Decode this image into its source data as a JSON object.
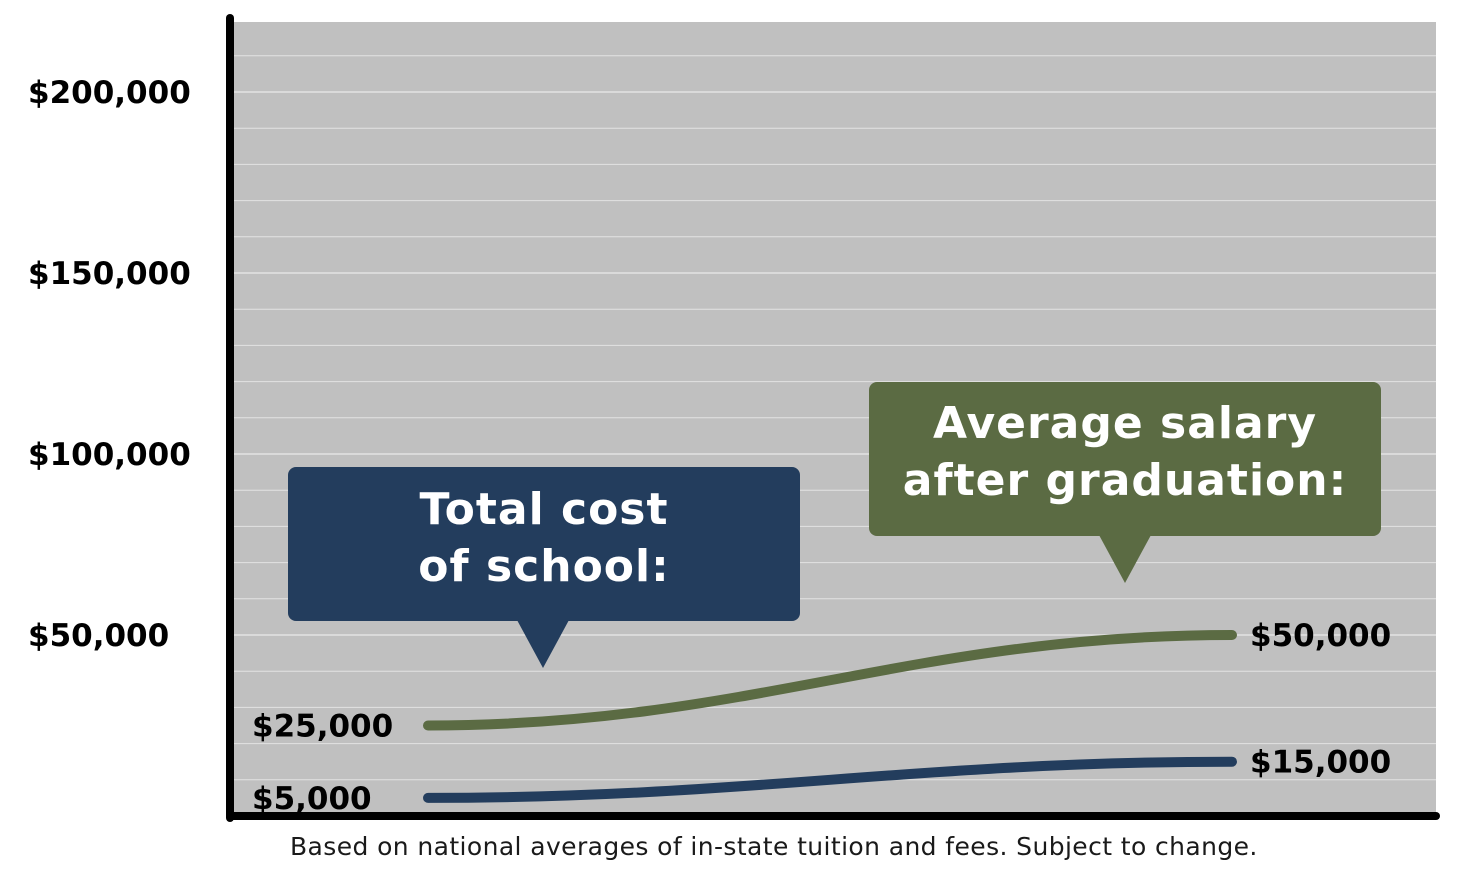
{
  "chart_data": {
    "type": "line",
    "ylim": [
      0,
      220000
    ],
    "yticks": [
      {
        "value": 200000,
        "label": "$200,000"
      },
      {
        "value": 150000,
        "label": "$150,000"
      },
      {
        "value": 100000,
        "label": "$100,000"
      },
      {
        "value": 50000,
        "label": "$50,000"
      }
    ],
    "series": [
      {
        "key": "salary",
        "start_value": 25000,
        "end_value": 50000,
        "start_label": "$25,000",
        "end_label": "$50,000",
        "color": "#5b6b43"
      },
      {
        "key": "cost",
        "start_value": 5000,
        "end_value": 15000,
        "start_label": "$5,000",
        "end_label": "$15,000",
        "color": "#233d5d"
      }
    ],
    "annotations": [
      {
        "series": "cost",
        "lines": [
          "Total cost",
          "of school:"
        ],
        "color": "#233d5d"
      },
      {
        "series": "salary",
        "lines": [
          "Average salary",
          "after graduation:"
        ],
        "color": "#5b6b43"
      }
    ],
    "grid": true,
    "plot_background": "#c0c0c0",
    "gridline_color": "#e3e3e3",
    "axis_color": "#000000"
  },
  "footnote": "Based on national averages of in-state tuition and fees. Subject to change."
}
